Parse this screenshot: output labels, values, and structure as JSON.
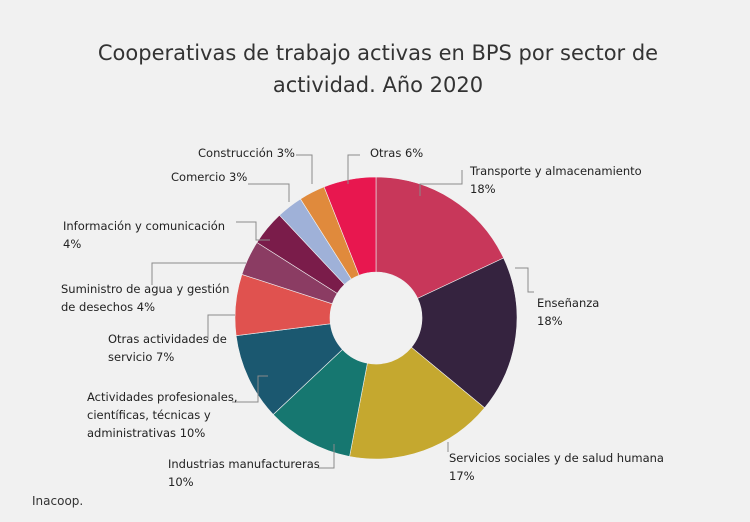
{
  "chart_data": {
    "type": "pie",
    "donut": true,
    "title_lines": [
      "Cooperativas de trabajo activas en BPS por sector de",
      "actividad. Año 2020"
    ],
    "unit": "%",
    "slices": [
      {
        "name": "Transporte y almacenamiento",
        "value": 18,
        "color": "#c8375a",
        "label_lines": [
          "Transporte y almacenamiento",
          "18%"
        ]
      },
      {
        "name": "Enseñanza",
        "value": 18,
        "color": "#35233f",
        "label_lines": [
          "Enseñanza",
          "18%"
        ]
      },
      {
        "name": "Servicios sociales y de salud humana",
        "value": 17,
        "color": "#c5a82f",
        "label_lines": [
          "Servicios sociales y de salud humana",
          "17%"
        ]
      },
      {
        "name": "Industrias manufactureras",
        "value": 10,
        "color": "#167770",
        "label_lines": [
          "Industrias manufactureras",
          "10%"
        ]
      },
      {
        "name": "Actividades profesionales, científicas, técnicas y administrativas",
        "value": 10,
        "color": "#1b5870",
        "label_lines": [
          "Actividades profesionales,",
          "científicas, técnicas y",
          "administrativas  10%"
        ]
      },
      {
        "name": "Otras actividades de servicio",
        "value": 7,
        "color": "#e0524f",
        "label_lines": [
          "Otras actividades de",
          "servicio   7%"
        ]
      },
      {
        "name": "Suministro de agua y gestión de desechos",
        "value": 4,
        "color": "#8b3c63",
        "label_lines": [
          "Suministro de agua y gestión",
          "de desechos  4%"
        ]
      },
      {
        "name": "Información y comunicación",
        "value": 4,
        "color": "#7a1c4a",
        "label_lines": [
          "Información y comunicación",
          "4%"
        ]
      },
      {
        "name": "Comercio",
        "value": 3,
        "color": "#9fb1d8",
        "label_lines": [
          "Comercio 3%"
        ]
      },
      {
        "name": "Construcción",
        "value": 3,
        "color": "#e08a3c",
        "label_lines": [
          "Construcción 3%"
        ]
      },
      {
        "name": "Otras",
        "value": 6,
        "color": "#e8174f",
        "label_lines": [
          "Otras 6%"
        ]
      }
    ]
  },
  "source": "Inacoop."
}
